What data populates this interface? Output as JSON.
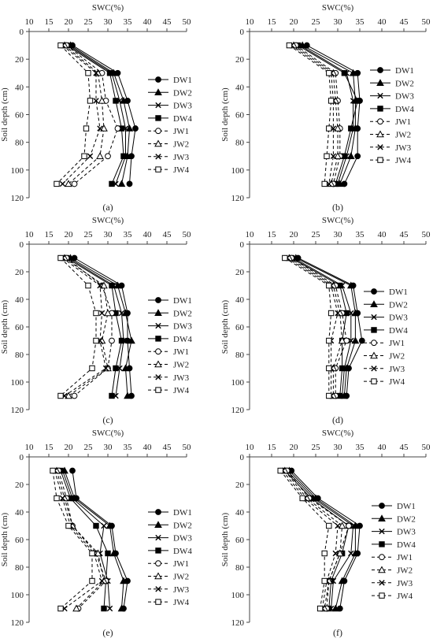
{
  "chart_data": [
    {
      "type": "line",
      "panel_label": "(a)",
      "xlabel": "SWC(%)",
      "ylabel": "Soil depth (cm)",
      "xlim": [
        10,
        50
      ],
      "ylim": [
        0,
        120
      ],
      "y_inverted": true,
      "x_axis_position": "top",
      "xticks": [
        10,
        15,
        20,
        25,
        30,
        35,
        40,
        45,
        50
      ],
      "yticks": [
        0,
        20,
        40,
        60,
        80,
        100,
        120
      ],
      "legend_position": "right",
      "grid": false,
      "depths": [
        10,
        30,
        50,
        70,
        90,
        110
      ],
      "series": [
        {
          "name": "DW1",
          "values": [
            21.0,
            32.5,
            35.0,
            37.0,
            36.0,
            35.5
          ]
        },
        {
          "name": "DW2",
          "values": [
            20.5,
            31.5,
            34.0,
            35.5,
            35.0,
            33.5
          ]
        },
        {
          "name": "DW3",
          "values": [
            20.0,
            31.0,
            33.0,
            34.5,
            34.5,
            32.0
          ]
        },
        {
          "name": "DW4",
          "values": [
            19.5,
            30.5,
            32.0,
            33.5,
            34.0,
            31.0
          ]
        },
        {
          "name": "JW1",
          "values": [
            19.5,
            28.5,
            29.5,
            32.5,
            30.0,
            21.5
          ]
        },
        {
          "name": "JW2",
          "values": [
            19.0,
            27.5,
            28.5,
            29.0,
            28.0,
            20.0
          ]
        },
        {
          "name": "JW3",
          "values": [
            18.5,
            27.0,
            27.0,
            28.0,
            25.5,
            18.5
          ]
        },
        {
          "name": "JW4",
          "values": [
            18.0,
            25.0,
            25.5,
            24.5,
            24.0,
            17.0
          ]
        }
      ]
    },
    {
      "type": "line",
      "panel_label": "(b)",
      "xlabel": "SWC(%)",
      "ylabel": "Soil depth (cm)",
      "xlim": [
        10,
        50
      ],
      "ylim": [
        0,
        120
      ],
      "y_inverted": true,
      "x_axis_position": "top",
      "xticks": [
        10,
        15,
        20,
        25,
        30,
        35,
        40,
        45,
        50
      ],
      "yticks": [
        0,
        20,
        40,
        60,
        80,
        100,
        120
      ],
      "legend_position": "right",
      "grid": false,
      "depths": [
        10,
        30,
        50,
        70,
        90,
        110
      ],
      "series": [
        {
          "name": "DW1",
          "values": [
            23.0,
            34.5,
            35.0,
            34.5,
            34.5,
            31.5
          ]
        },
        {
          "name": "DW2",
          "values": [
            22.0,
            33.5,
            34.0,
            34.0,
            33.0,
            30.5
          ]
        },
        {
          "name": "DW3",
          "values": [
            21.5,
            32.0,
            33.5,
            33.5,
            32.0,
            30.0
          ]
        },
        {
          "name": "DW4",
          "values": [
            21.0,
            31.5,
            34.5,
            33.0,
            31.5,
            29.5
          ]
        },
        {
          "name": "JW1",
          "values": [
            20.5,
            29.5,
            30.0,
            30.5,
            30.5,
            29.0
          ]
        },
        {
          "name": "JW2",
          "values": [
            20.0,
            29.0,
            29.5,
            30.0,
            30.0,
            28.5
          ]
        },
        {
          "name": "JW3",
          "values": [
            19.5,
            28.5,
            29.0,
            29.0,
            29.0,
            28.0
          ]
        },
        {
          "name": "JW4",
          "values": [
            19.0,
            28.0,
            28.5,
            28.0,
            27.5,
            27.0
          ]
        }
      ]
    },
    {
      "type": "line",
      "panel_label": "(c)",
      "xlabel": "SWC(%)",
      "ylabel": "Soil depth (cm)",
      "xlim": [
        10,
        50
      ],
      "ylim": [
        0,
        120
      ],
      "y_inverted": true,
      "x_axis_position": "top",
      "xticks": [
        10,
        15,
        20,
        25,
        30,
        35,
        40,
        45,
        50
      ],
      "yticks": [
        0,
        20,
        40,
        60,
        80,
        100,
        120
      ],
      "legend_position": "right",
      "grid": false,
      "depths": [
        10,
        30,
        50,
        70,
        90,
        110
      ],
      "series": [
        {
          "name": "DW1",
          "values": [
            21.5,
            33.5,
            35.0,
            35.0,
            35.5,
            36.0
          ]
        },
        {
          "name": "DW2",
          "values": [
            20.5,
            32.5,
            34.5,
            36.0,
            34.5,
            35.0
          ]
        },
        {
          "name": "DW3",
          "values": [
            20.0,
            31.5,
            33.5,
            34.0,
            33.0,
            32.0
          ]
        },
        {
          "name": "DW4",
          "values": [
            19.5,
            31.0,
            32.0,
            33.5,
            32.0,
            31.0
          ]
        },
        {
          "name": "JW1",
          "values": [
            19.5,
            28.5,
            31.0,
            31.0,
            30.0,
            21.5
          ]
        },
        {
          "name": "JW2",
          "values": [
            19.0,
            29.0,
            30.0,
            28.5,
            30.0,
            20.0
          ]
        },
        {
          "name": "JW3",
          "values": [
            18.5,
            28.0,
            28.5,
            28.0,
            29.5,
            19.0
          ]
        },
        {
          "name": "JW4",
          "values": [
            18.0,
            25.0,
            27.0,
            27.0,
            26.0,
            18.0
          ]
        }
      ]
    },
    {
      "type": "line",
      "panel_label": "(d)",
      "xlabel": "SWC(%)",
      "ylabel": "Soil depth (cm)",
      "xlim": [
        10,
        50
      ],
      "ylim": [
        0,
        120
      ],
      "y_inverted": true,
      "x_axis_position": "top",
      "xticks": [
        10,
        15,
        20,
        25,
        30,
        35,
        40,
        45,
        50
      ],
      "yticks": [
        0,
        20,
        40,
        60,
        80,
        100,
        120
      ],
      "legend_position": "right",
      "grid": false,
      "depths": [
        10,
        30,
        50,
        70,
        90,
        110
      ],
      "series": [
        {
          "name": "DW1",
          "values": [
            21.0,
            33.5,
            34.5,
            35.5,
            32.5,
            32.0
          ]
        },
        {
          "name": "DW2",
          "values": [
            20.5,
            33.0,
            34.0,
            34.0,
            32.0,
            31.5
          ]
        },
        {
          "name": "DW3",
          "values": [
            20.0,
            31.0,
            33.0,
            33.0,
            31.5,
            31.0
          ]
        },
        {
          "name": "DW4",
          "values": [
            19.5,
            30.5,
            32.0,
            31.0,
            31.0,
            30.5
          ]
        },
        {
          "name": "JW1",
          "values": [
            19.5,
            29.5,
            31.0,
            32.0,
            29.5,
            29.5
          ]
        },
        {
          "name": "JW2",
          "values": [
            19.0,
            29.0,
            30.5,
            31.0,
            29.0,
            29.0
          ]
        },
        {
          "name": "JW3",
          "values": [
            18.5,
            28.5,
            30.0,
            28.5,
            28.5,
            28.5
          ]
        },
        {
          "name": "JW4",
          "values": [
            18.0,
            28.0,
            28.5,
            28.0,
            28.0,
            28.0
          ]
        }
      ]
    },
    {
      "type": "line",
      "panel_label": "(e)",
      "xlabel": "SWC(%)",
      "ylabel": "Soil depth (cm)",
      "xlim": [
        10,
        50
      ],
      "ylim": [
        0,
        120
      ],
      "y_inverted": true,
      "x_axis_position": "top",
      "xticks": [
        10,
        15,
        20,
        25,
        30,
        35,
        40,
        45,
        50
      ],
      "yticks": [
        0,
        20,
        40,
        60,
        80,
        100,
        120
      ],
      "legend_position": "right",
      "grid": false,
      "depths": [
        10,
        30,
        50,
        70,
        90,
        110
      ],
      "series": [
        {
          "name": "DW1",
          "values": [
            21.0,
            22.0,
            31.0,
            32.0,
            35.0,
            34.0
          ]
        },
        {
          "name": "DW2",
          "values": [
            19.0,
            21.5,
            30.5,
            31.5,
            34.0,
            33.5
          ]
        },
        {
          "name": "DW3",
          "values": [
            18.5,
            21.0,
            29.0,
            28.0,
            30.0,
            30.5
          ]
        },
        {
          "name": "DW4",
          "values": [
            18.0,
            20.5,
            27.0,
            30.0,
            29.5,
            29.0
          ]
        },
        {
          "name": "JW1",
          "values": [
            17.5,
            19.5,
            21.0,
            27.0,
            29.5,
            22.5
          ]
        },
        {
          "name": "JW2",
          "values": [
            17.0,
            19.0,
            21.0,
            27.5,
            29.0,
            22.0
          ]
        },
        {
          "name": "JW3",
          "values": [
            16.5,
            18.5,
            20.5,
            26.5,
            28.5,
            19.0
          ]
        },
        {
          "name": "JW4",
          "values": [
            16.0,
            17.0,
            20.0,
            26.0,
            26.0,
            18.0
          ]
        }
      ]
    },
    {
      "type": "line",
      "panel_label": "(f)",
      "xlabel": "SWC(%)",
      "ylabel": "Soil depth (cm)",
      "xlim": [
        10,
        50
      ],
      "ylim": [
        0,
        120
      ],
      "y_inverted": true,
      "x_axis_position": "top",
      "xticks": [
        10,
        15,
        20,
        25,
        30,
        35,
        40,
        45,
        50
      ],
      "yticks": [
        0,
        20,
        40,
        60,
        80,
        100,
        120
      ],
      "legend_position": "right",
      "grid": false,
      "depths": [
        10,
        30,
        50,
        70,
        90,
        110
      ],
      "series": [
        {
          "name": "DW1",
          "values": [
            19.5,
            25.5,
            35.0,
            34.5,
            31.5,
            30.5
          ]
        },
        {
          "name": "DW2",
          "values": [
            19.0,
            25.0,
            34.0,
            34.0,
            31.0,
            29.5
          ]
        },
        {
          "name": "DW3",
          "values": [
            18.5,
            24.5,
            33.5,
            33.0,
            29.0,
            28.5
          ]
        },
        {
          "name": "DW4",
          "values": [
            18.0,
            24.0,
            32.5,
            31.0,
            28.5,
            28.0
          ]
        },
        {
          "name": "JW1",
          "values": [
            18.5,
            23.5,
            32.5,
            30.5,
            28.0,
            27.5
          ]
        },
        {
          "name": "JW2",
          "values": [
            18.0,
            23.0,
            31.0,
            30.5,
            28.0,
            27.0
          ]
        },
        {
          "name": "JW3",
          "values": [
            17.5,
            22.5,
            30.0,
            29.5,
            27.5,
            26.5
          ]
        },
        {
          "name": "JW4",
          "values": [
            17.0,
            22.0,
            28.0,
            27.0,
            27.0,
            26.0
          ]
        }
      ]
    }
  ]
}
